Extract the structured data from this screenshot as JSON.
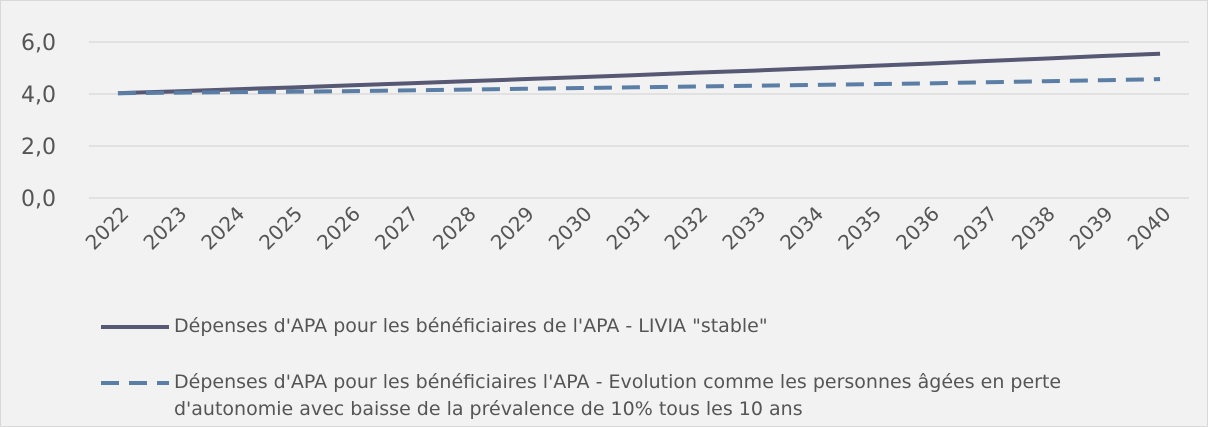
{
  "chart_data": {
    "type": "line",
    "categories": [
      "2022",
      "2023",
      "2024",
      "2025",
      "2026",
      "2027",
      "2028",
      "2029",
      "2030",
      "2031",
      "2032",
      "2033",
      "2034",
      "2035",
      "2036",
      "2037",
      "2038",
      "2039",
      "2040"
    ],
    "series": [
      {
        "name": "Dépenses d'APA pour les bénéficiaires de l'APA - LIVIA \"stable\"",
        "color": "#565874",
        "dash": false,
        "values": [
          4.03,
          4.1,
          4.18,
          4.25,
          4.33,
          4.41,
          4.49,
          4.57,
          4.65,
          4.73,
          4.82,
          4.9,
          4.99,
          5.08,
          5.17,
          5.27,
          5.36,
          5.46,
          5.55
        ]
      },
      {
        "name": "Dépenses d'APA pour les bénéficiaires l'APA - Evolution comme les personnes âgées en perte d'autonomie avec baisse de la prévalence de 10% tous les 10 ans",
        "color": "#5a7ea5",
        "dash": true,
        "values": [
          4.03,
          4.05,
          4.07,
          4.09,
          4.11,
          4.14,
          4.17,
          4.2,
          4.23,
          4.26,
          4.29,
          4.32,
          4.35,
          4.38,
          4.41,
          4.45,
          4.49,
          4.53,
          4.57
        ]
      }
    ],
    "ylim": [
      0,
      6
    ],
    "yticks": [
      {
        "value": 0,
        "label": "0,0"
      },
      {
        "value": 2,
        "label": "2,0"
      },
      {
        "value": 4,
        "label": "4,0"
      },
      {
        "value": 6,
        "label": "6,0"
      }
    ],
    "grid": true,
    "legend": "bottom"
  }
}
